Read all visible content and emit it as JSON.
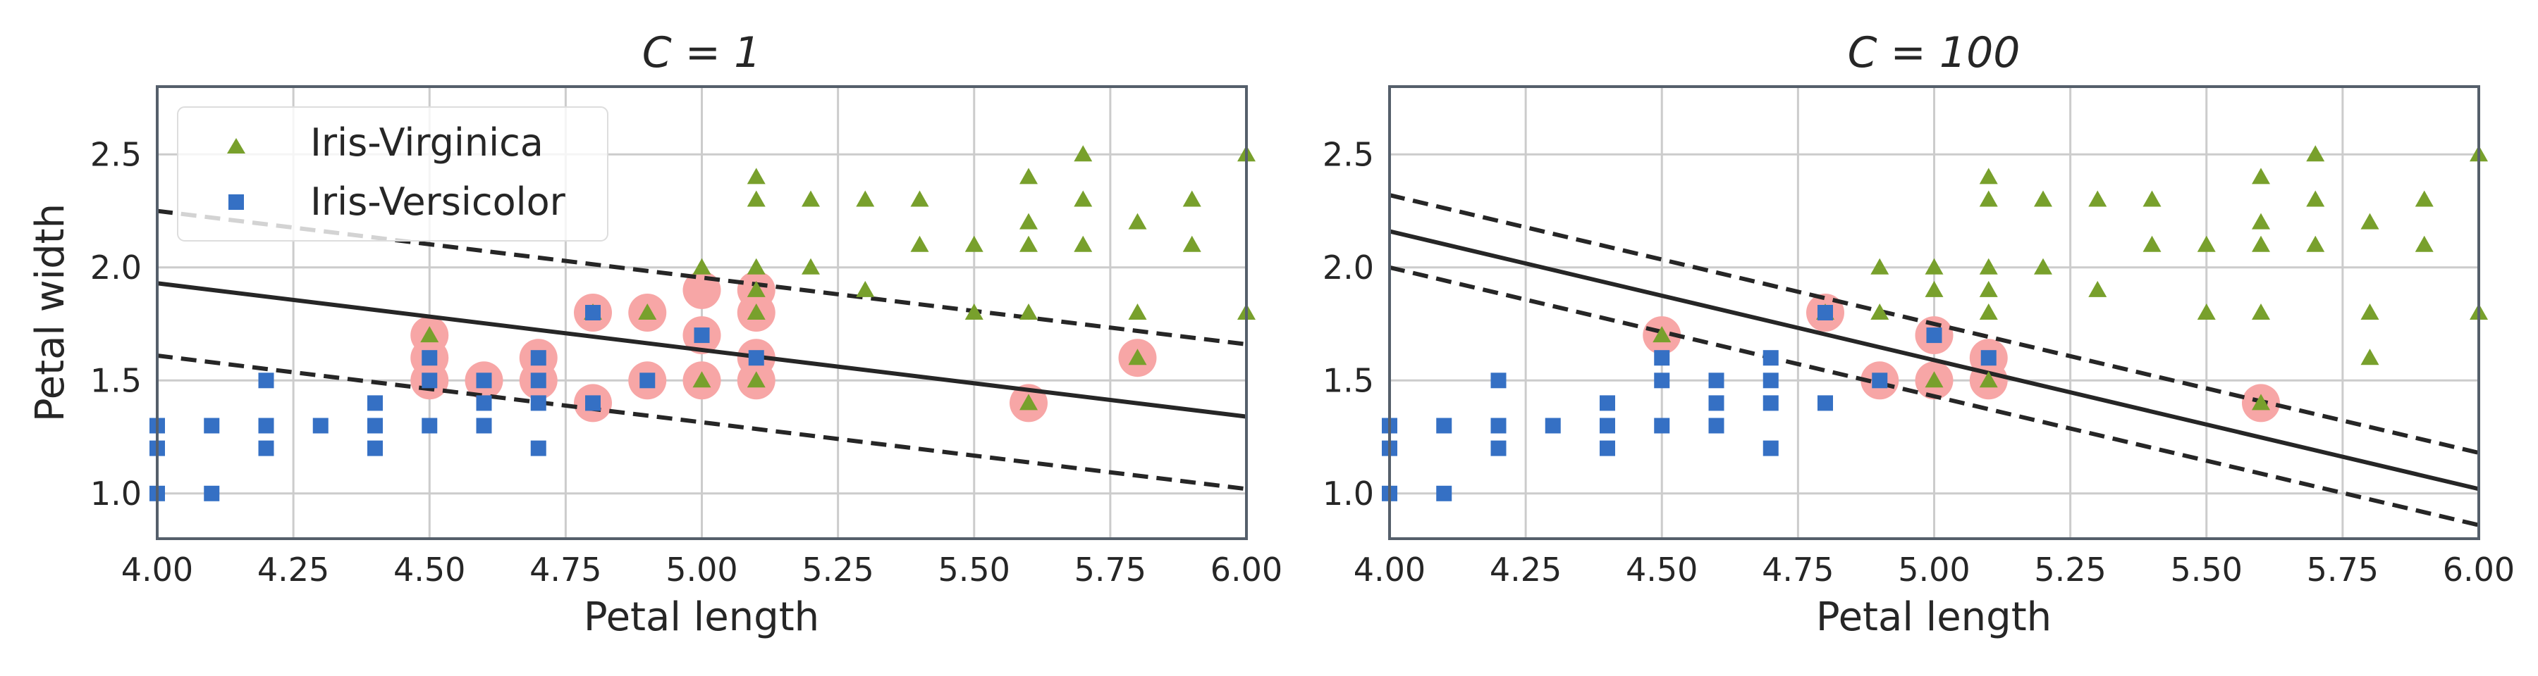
{
  "figure": {
    "title_left": "C = 1",
    "title_right": "C = 100"
  },
  "colors": {
    "virginica": "#78a02c",
    "versicolor": "#3570c4",
    "support": "#f7a6a6",
    "line": "#262626",
    "grid": "#cccccc"
  },
  "chart_data": [
    {
      "type": "scatter",
      "title": "C = 1",
      "xlabel": "Petal length",
      "ylabel": "Petal width",
      "xlim": [
        4.0,
        6.0
      ],
      "ylim": [
        0.8,
        2.8
      ],
      "xticks": [
        4.0,
        4.25,
        4.5,
        4.75,
        5.0,
        5.25,
        5.5,
        5.75,
        6.0
      ],
      "xtick_labels": [
        "4.00",
        "4.25",
        "4.50",
        "4.75",
        "5.00",
        "5.25",
        "5.50",
        "5.75",
        "6.00"
      ],
      "yticks": [
        1.0,
        1.5,
        2.0,
        2.5
      ],
      "ytick_labels": [
        "1.0",
        "1.5",
        "2.0",
        "2.5"
      ],
      "legend": {
        "location": "upper-left",
        "entries": [
          "Iris-Virginica",
          "Iris-Versicolor"
        ]
      },
      "series": [
        {
          "name": "Iris-Virginica",
          "marker": "triangle",
          "points": [
            [
              4.5,
              1.7
            ],
            [
              4.8,
              1.8
            ],
            [
              4.9,
              1.8
            ],
            [
              5.0,
              1.5
            ],
            [
              5.0,
              2.0
            ],
            [
              5.1,
              1.5
            ],
            [
              5.1,
              1.8
            ],
            [
              5.1,
              1.9
            ],
            [
              5.1,
              2.0
            ],
            [
              5.1,
              2.3
            ],
            [
              5.1,
              2.4
            ],
            [
              5.2,
              2.0
            ],
            [
              5.2,
              2.3
            ],
            [
              5.3,
              1.9
            ],
            [
              5.3,
              2.3
            ],
            [
              5.4,
              2.1
            ],
            [
              5.4,
              2.3
            ],
            [
              5.5,
              1.8
            ],
            [
              5.5,
              2.1
            ],
            [
              5.6,
              1.4
            ],
            [
              5.6,
              1.8
            ],
            [
              5.6,
              2.1
            ],
            [
              5.6,
              2.2
            ],
            [
              5.6,
              2.4
            ],
            [
              5.7,
              2.1
            ],
            [
              5.7,
              2.3
            ],
            [
              5.7,
              2.5
            ],
            [
              5.8,
              1.6
            ],
            [
              5.8,
              1.8
            ],
            [
              5.8,
              2.2
            ],
            [
              5.9,
              2.1
            ],
            [
              5.9,
              2.3
            ],
            [
              6.0,
              1.8
            ],
            [
              6.0,
              2.5
            ]
          ]
        },
        {
          "name": "Iris-Versicolor",
          "marker": "square",
          "points": [
            [
              4.0,
              1.0
            ],
            [
              4.0,
              1.2
            ],
            [
              4.0,
              1.3
            ],
            [
              4.1,
              1.0
            ],
            [
              4.1,
              1.3
            ],
            [
              4.2,
              1.2
            ],
            [
              4.2,
              1.3
            ],
            [
              4.2,
              1.5
            ],
            [
              4.3,
              1.3
            ],
            [
              4.4,
              1.2
            ],
            [
              4.4,
              1.3
            ],
            [
              4.4,
              1.4
            ],
            [
              4.5,
              1.3
            ],
            [
              4.5,
              1.5
            ],
            [
              4.5,
              1.6
            ],
            [
              4.6,
              1.3
            ],
            [
              4.6,
              1.4
            ],
            [
              4.6,
              1.5
            ],
            [
              4.7,
              1.2
            ],
            [
              4.7,
              1.4
            ],
            [
              4.7,
              1.5
            ],
            [
              4.7,
              1.6
            ],
            [
              4.8,
              1.4
            ],
            [
              4.8,
              1.8
            ],
            [
              4.9,
              1.5
            ],
            [
              5.0,
              1.7
            ],
            [
              5.1,
              1.6
            ]
          ]
        }
      ],
      "support_vectors": [
        [
          4.5,
          1.7
        ],
        [
          4.5,
          1.6
        ],
        [
          4.5,
          1.5
        ],
        [
          4.6,
          1.5
        ],
        [
          4.7,
          1.6
        ],
        [
          4.7,
          1.5
        ],
        [
          4.8,
          1.8
        ],
        [
          4.8,
          1.4
        ],
        [
          4.9,
          1.8
        ],
        [
          4.9,
          1.5
        ],
        [
          5.0,
          1.9
        ],
        [
          5.0,
          1.7
        ],
        [
          5.0,
          1.5
        ],
        [
          5.1,
          1.9
        ],
        [
          5.1,
          1.8
        ],
        [
          5.1,
          1.6
        ],
        [
          5.1,
          1.5
        ],
        [
          5.6,
          1.4
        ],
        [
          5.8,
          1.6
        ]
      ],
      "decision_boundary": [
        [
          4.0,
          1.93
        ],
        [
          6.0,
          1.34
        ]
      ],
      "margin_upper": [
        [
          4.0,
          2.25
        ],
        [
          6.0,
          1.66
        ]
      ],
      "margin_lower": [
        [
          4.0,
          1.61
        ],
        [
          6.0,
          1.02
        ]
      ]
    },
    {
      "type": "scatter",
      "title": "C = 100",
      "xlabel": "Petal length",
      "ylabel": "",
      "xlim": [
        4.0,
        6.0
      ],
      "ylim": [
        0.8,
        2.8
      ],
      "xticks": [
        4.0,
        4.25,
        4.5,
        4.75,
        5.0,
        5.25,
        5.5,
        5.75,
        6.0
      ],
      "xtick_labels": [
        "4.00",
        "4.25",
        "4.50",
        "4.75",
        "5.00",
        "5.25",
        "5.50",
        "5.75",
        "6.00"
      ],
      "yticks": [
        1.0,
        1.5,
        2.0,
        2.5
      ],
      "ytick_labels": [
        "1.0",
        "1.5",
        "2.0",
        "2.5"
      ],
      "legend": null,
      "series": [
        {
          "name": "Iris-Virginica",
          "marker": "triangle",
          "points": [
            [
              4.5,
              1.7
            ],
            [
              4.8,
              1.8
            ],
            [
              4.9,
              1.8
            ],
            [
              4.9,
              2.0
            ],
            [
              5.0,
              1.5
            ],
            [
              5.0,
              1.9
            ],
            [
              5.0,
              2.0
            ],
            [
              5.1,
              1.5
            ],
            [
              5.1,
              1.8
            ],
            [
              5.1,
              1.9
            ],
            [
              5.1,
              2.0
            ],
            [
              5.1,
              2.3
            ],
            [
              5.1,
              2.4
            ],
            [
              5.2,
              2.0
            ],
            [
              5.2,
              2.3
            ],
            [
              5.3,
              1.9
            ],
            [
              5.3,
              2.3
            ],
            [
              5.4,
              2.1
            ],
            [
              5.4,
              2.3
            ],
            [
              5.5,
              1.8
            ],
            [
              5.5,
              2.1
            ],
            [
              5.6,
              1.4
            ],
            [
              5.6,
              1.8
            ],
            [
              5.6,
              2.1
            ],
            [
              5.6,
              2.2
            ],
            [
              5.6,
              2.4
            ],
            [
              5.7,
              2.1
            ],
            [
              5.7,
              2.3
            ],
            [
              5.7,
              2.5
            ],
            [
              5.8,
              1.6
            ],
            [
              5.8,
              1.8
            ],
            [
              5.8,
              2.2
            ],
            [
              5.9,
              2.1
            ],
            [
              5.9,
              2.3
            ],
            [
              6.0,
              1.8
            ],
            [
              6.0,
              2.5
            ]
          ]
        },
        {
          "name": "Iris-Versicolor",
          "marker": "square",
          "points": [
            [
              4.0,
              1.0
            ],
            [
              4.0,
              1.2
            ],
            [
              4.0,
              1.3
            ],
            [
              4.1,
              1.0
            ],
            [
              4.1,
              1.3
            ],
            [
              4.2,
              1.2
            ],
            [
              4.2,
              1.3
            ],
            [
              4.2,
              1.5
            ],
            [
              4.3,
              1.3
            ],
            [
              4.4,
              1.2
            ],
            [
              4.4,
              1.3
            ],
            [
              4.4,
              1.4
            ],
            [
              4.5,
              1.3
            ],
            [
              4.5,
              1.5
            ],
            [
              4.5,
              1.6
            ],
            [
              4.6,
              1.3
            ],
            [
              4.6,
              1.4
            ],
            [
              4.6,
              1.5
            ],
            [
              4.7,
              1.2
            ],
            [
              4.7,
              1.4
            ],
            [
              4.7,
              1.5
            ],
            [
              4.7,
              1.6
            ],
            [
              4.8,
              1.4
            ],
            [
              4.8,
              1.8
            ],
            [
              4.9,
              1.5
            ],
            [
              5.0,
              1.7
            ],
            [
              5.1,
              1.6
            ]
          ]
        }
      ],
      "support_vectors": [
        [
          4.5,
          1.7
        ],
        [
          4.8,
          1.8
        ],
        [
          4.9,
          1.5
        ],
        [
          5.0,
          1.7
        ],
        [
          5.0,
          1.5
        ],
        [
          5.1,
          1.6
        ],
        [
          5.1,
          1.5
        ],
        [
          5.6,
          1.4
        ]
      ],
      "decision_boundary": [
        [
          4.0,
          2.16
        ],
        [
          6.0,
          1.02
        ]
      ],
      "margin_upper": [
        [
          4.0,
          2.32
        ],
        [
          6.0,
          1.18
        ]
      ],
      "margin_lower": [
        [
          4.0,
          2.0
        ],
        [
          6.0,
          0.86
        ]
      ]
    }
  ]
}
